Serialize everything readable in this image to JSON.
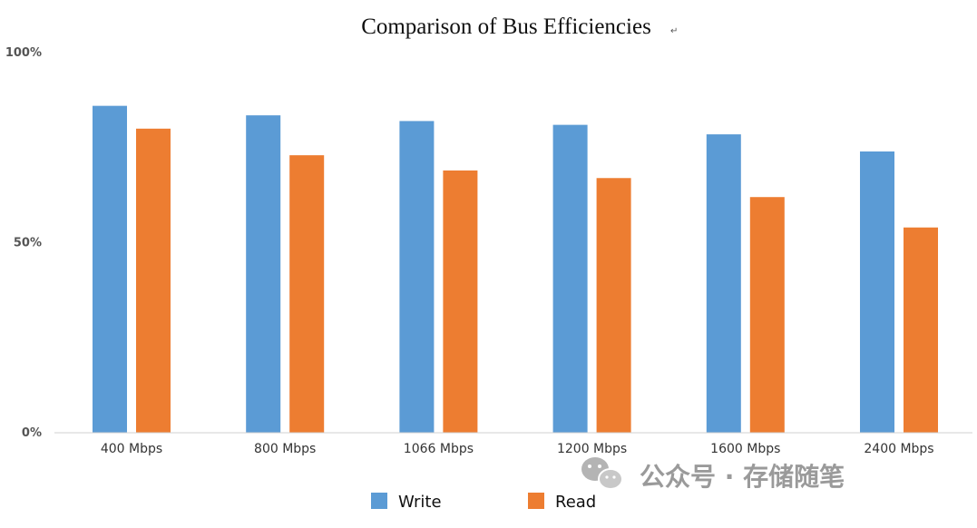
{
  "chart_data": {
    "type": "bar",
    "title": "Comparison of Bus Efficiencies",
    "title_mark": "↵",
    "categories": [
      "400 Mbps",
      "800 Mbps",
      "1066 Mbps",
      "1200 Mbps",
      "1600 Mbps",
      "2400 Mbps"
    ],
    "series": [
      {
        "name": "Write",
        "color": "#5b9bd5",
        "values": [
          86,
          83.5,
          82,
          81,
          78.5,
          74
        ]
      },
      {
        "name": "Read",
        "color": "#ed7d31",
        "values": [
          80,
          73,
          69,
          67,
          62,
          54
        ]
      }
    ],
    "yticks": [
      {
        "value": 100,
        "label": "100%"
      },
      {
        "value": 50,
        "label": "50%"
      },
      {
        "value": 0,
        "label": "0%"
      }
    ],
    "ylim": [
      0,
      100
    ],
    "xlabel": "",
    "ylabel": "",
    "grid": false,
    "legend_position": "bottom"
  },
  "watermark": {
    "icon": "wechat-icon",
    "text": "公众号 · 存储随笔",
    "color": "#9a9a9a"
  }
}
